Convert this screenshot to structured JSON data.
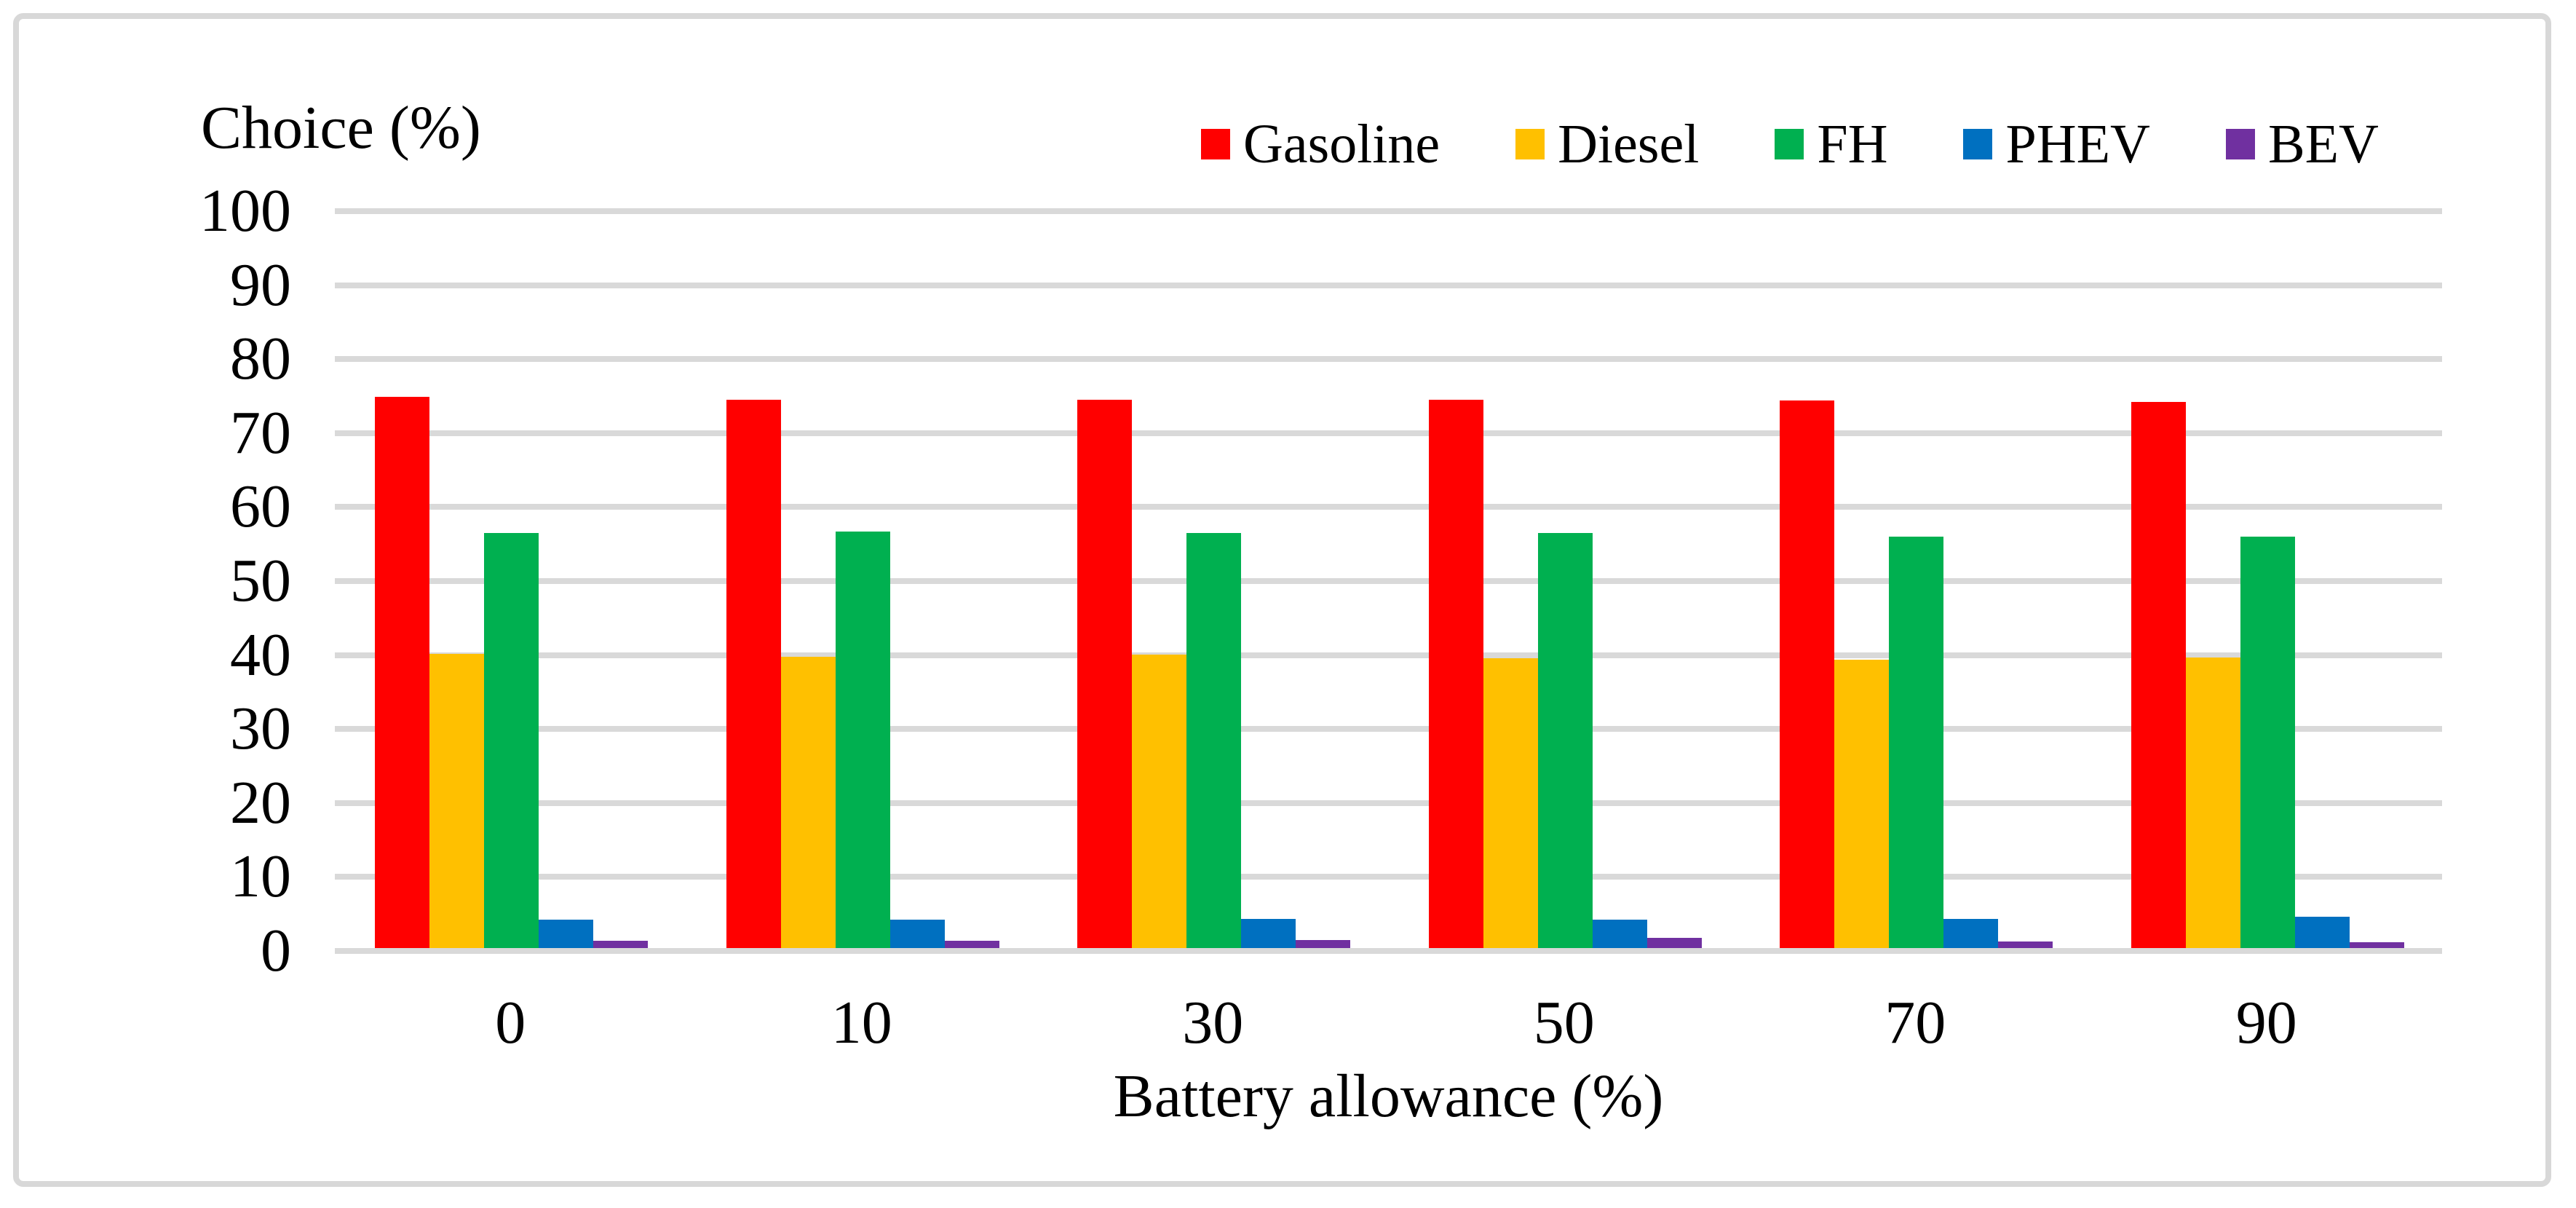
{
  "chart_data": {
    "type": "bar",
    "y_axis_title": "Choice (%)",
    "xlabel": "Battery allowance (%)",
    "categories": [
      "0",
      "10",
      "30",
      "50",
      "70",
      "90"
    ],
    "series": [
      {
        "name": "Gasoline",
        "color": "#FF0000",
        "values": [
          74.5,
          74.1,
          74.1,
          74.1,
          74.0,
          73.8
        ]
      },
      {
        "name": "Diesel",
        "color": "#FFC000",
        "values": [
          39.8,
          39.4,
          39.7,
          39.2,
          39.0,
          39.3
        ]
      },
      {
        "name": "FH",
        "color": "#00B050",
        "values": [
          56.1,
          56.3,
          56.1,
          56.1,
          55.6,
          55.6
        ]
      },
      {
        "name": "PHEV",
        "color": "#0070C0",
        "values": [
          3.8,
          3.8,
          3.9,
          3.8,
          3.9,
          4.2
        ]
      },
      {
        "name": "BEV",
        "color": "#7030A0",
        "values": [
          1.0,
          1.0,
          1.1,
          1.4,
          0.9,
          0.8
        ]
      }
    ],
    "ylim": [
      0,
      100
    ],
    "ytick_step": 10,
    "ytick_labels": [
      "0",
      "10",
      "20",
      "30",
      "40",
      "50",
      "60",
      "70",
      "80",
      "90",
      "100"
    ],
    "grid": true,
    "gridline_color": "#D9D9D9",
    "frame_border_color": "#D8D8D8",
    "legend_position": "top",
    "legend_labels": [
      "Gasoline",
      "Diesel",
      "FH",
      "PHEV",
      "BEV"
    ]
  }
}
